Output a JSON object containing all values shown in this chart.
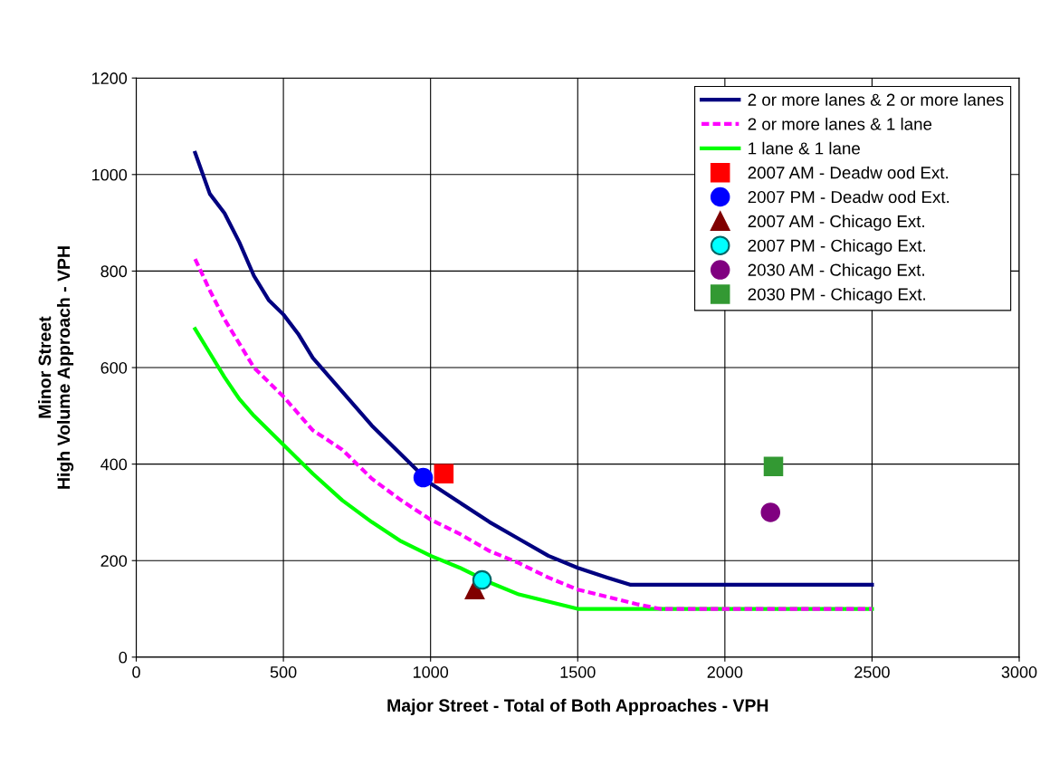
{
  "chart_data": {
    "type": "line",
    "xlabel": "Major Street - Total of Both Approaches - VPH",
    "ylabel": "Minor Street\nHigh Volume Approach - VPH",
    "xlim": [
      0,
      3000
    ],
    "xticks": [
      0,
      500,
      1000,
      1500,
      2000,
      2500,
      3000
    ],
    "ylim": [
      0,
      1200
    ],
    "yticks": [
      0,
      200,
      400,
      600,
      800,
      1000,
      1200
    ],
    "grid": true,
    "legend": "top right",
    "series": [
      {
        "name": "2 or more lanes & 2 or more lanes",
        "color": "#000080",
        "line_style": "solid",
        "marker": "none",
        "x": [
          200,
          250,
          300,
          350,
          400,
          450,
          500,
          550,
          600,
          700,
          800,
          900,
          1000,
          1100,
          1200,
          1300,
          1400,
          1500,
          1600,
          1680,
          2500
        ],
        "values": [
          1045,
          960,
          920,
          860,
          790,
          740,
          710,
          670,
          620,
          550,
          480,
          420,
          360,
          320,
          280,
          245,
          210,
          185,
          165,
          150,
          150
        ]
      },
      {
        "name": "2 or more lanes & 1 lane",
        "color": "#ff00ff",
        "line_style": "dashed",
        "marker": "none",
        "x": [
          200,
          250,
          300,
          350,
          400,
          500,
          600,
          700,
          800,
          900,
          1000,
          1100,
          1200,
          1300,
          1400,
          1500,
          1600,
          1700,
          1780,
          2500
        ],
        "values": [
          825,
          760,
          700,
          650,
          600,
          540,
          470,
          430,
          370,
          325,
          285,
          255,
          220,
          195,
          165,
          140,
          125,
          110,
          100,
          100
        ]
      },
      {
        "name": "1 lane & 1 lane",
        "color": "#00ff00",
        "line_style": "solid",
        "marker": "none",
        "x": [
          200,
          250,
          300,
          350,
          400,
          500,
          600,
          700,
          800,
          900,
          1000,
          1100,
          1200,
          1300,
          1400,
          1500,
          2500
        ],
        "values": [
          680,
          630,
          580,
          535,
          500,
          440,
          380,
          325,
          280,
          240,
          210,
          185,
          155,
          130,
          115,
          100,
          100
        ]
      },
      {
        "name": "2007 AM - Deadw ood Ext.",
        "type": "scatter",
        "color": "#ff0000",
        "marker": "square",
        "x": [
          1045
        ],
        "values": [
          380
        ]
      },
      {
        "name": "2007 PM - Deadw ood Ext.",
        "type": "scatter",
        "color": "#0000ff",
        "marker": "circle",
        "x": [
          975
        ],
        "values": [
          372
        ]
      },
      {
        "name": "2007 AM - Chicago Ext.",
        "type": "scatter",
        "color": "#800000",
        "marker": "triangle",
        "x": [
          1150
        ],
        "values": [
          140
        ]
      },
      {
        "name": "2007 PM - Chicago Ext.",
        "type": "scatter",
        "color": "#00ffff",
        "marker": "circle",
        "x": [
          1175
        ],
        "values": [
          160
        ]
      },
      {
        "name": "2030 AM - Chicago Ext.",
        "type": "scatter",
        "color": "#800080",
        "marker": "circle",
        "x": [
          2155
        ],
        "values": [
          300
        ]
      },
      {
        "name": "2030 PM - Chicago Ext.",
        "type": "scatter",
        "color": "#339933",
        "marker": "square",
        "x": [
          2165
        ],
        "values": [
          395
        ]
      }
    ]
  }
}
